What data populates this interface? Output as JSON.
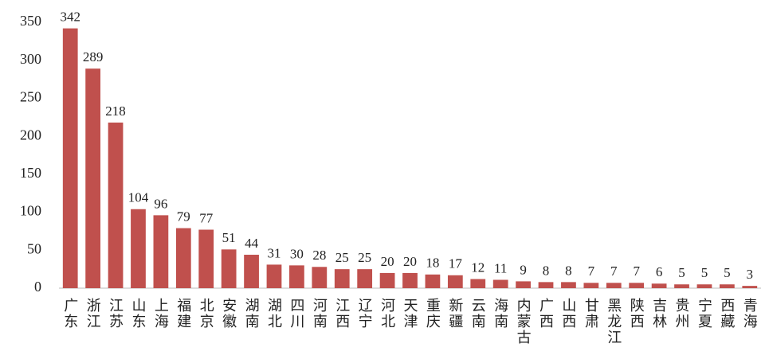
{
  "chart_data": {
    "type": "bar",
    "categories": [
      "广东",
      "浙江",
      "江苏",
      "山东",
      "上海",
      "福建",
      "北京",
      "安徽",
      "湖南",
      "湖北",
      "四川",
      "河南",
      "江西",
      "辽宁",
      "河北",
      "天津",
      "重庆",
      "新疆",
      "云南",
      "海南",
      "内蒙古",
      "广西",
      "山西",
      "甘肃",
      "黑龙江",
      "陕西",
      "吉林",
      "贵州",
      "宁夏",
      "西藏",
      "青海"
    ],
    "values": [
      342,
      289,
      218,
      104,
      96,
      79,
      77,
      51,
      44,
      31,
      30,
      28,
      25,
      25,
      20,
      20,
      18,
      17,
      12,
      11,
      9,
      8,
      8,
      7,
      7,
      7,
      6,
      5,
      5,
      5,
      3
    ],
    "color": "#c0504d",
    "ylim": [
      0,
      350
    ],
    "yticks": [
      0,
      50,
      100,
      150,
      200,
      250,
      300,
      350
    ],
    "grid": false
  }
}
